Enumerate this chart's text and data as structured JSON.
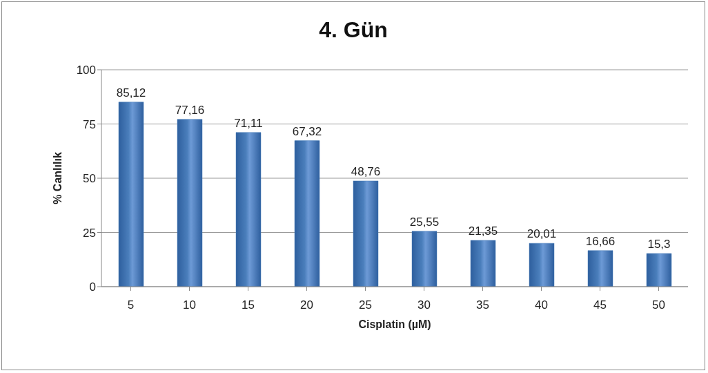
{
  "chart_data": {
    "type": "bar",
    "title": "4. Gün",
    "xlabel": "Cisplatin (µM)",
    "ylabel": "% Canlılık",
    "categories": [
      "5",
      "10",
      "15",
      "20",
      "25",
      "30",
      "35",
      "40",
      "45",
      "50"
    ],
    "values": [
      85.12,
      77.16,
      71.11,
      67.32,
      48.76,
      25.55,
      21.35,
      20.01,
      16.66,
      15.3
    ],
    "value_labels": [
      "85,12",
      "77,16",
      "71,11",
      "67,32",
      "48,76",
      "25,55",
      "21,35",
      "20,01",
      "16,66",
      "15,3"
    ],
    "color": "#4a7ebb",
    "ylim": [
      0,
      100
    ],
    "yticks": [
      0,
      25,
      50,
      75,
      100
    ],
    "grid": "y"
  }
}
